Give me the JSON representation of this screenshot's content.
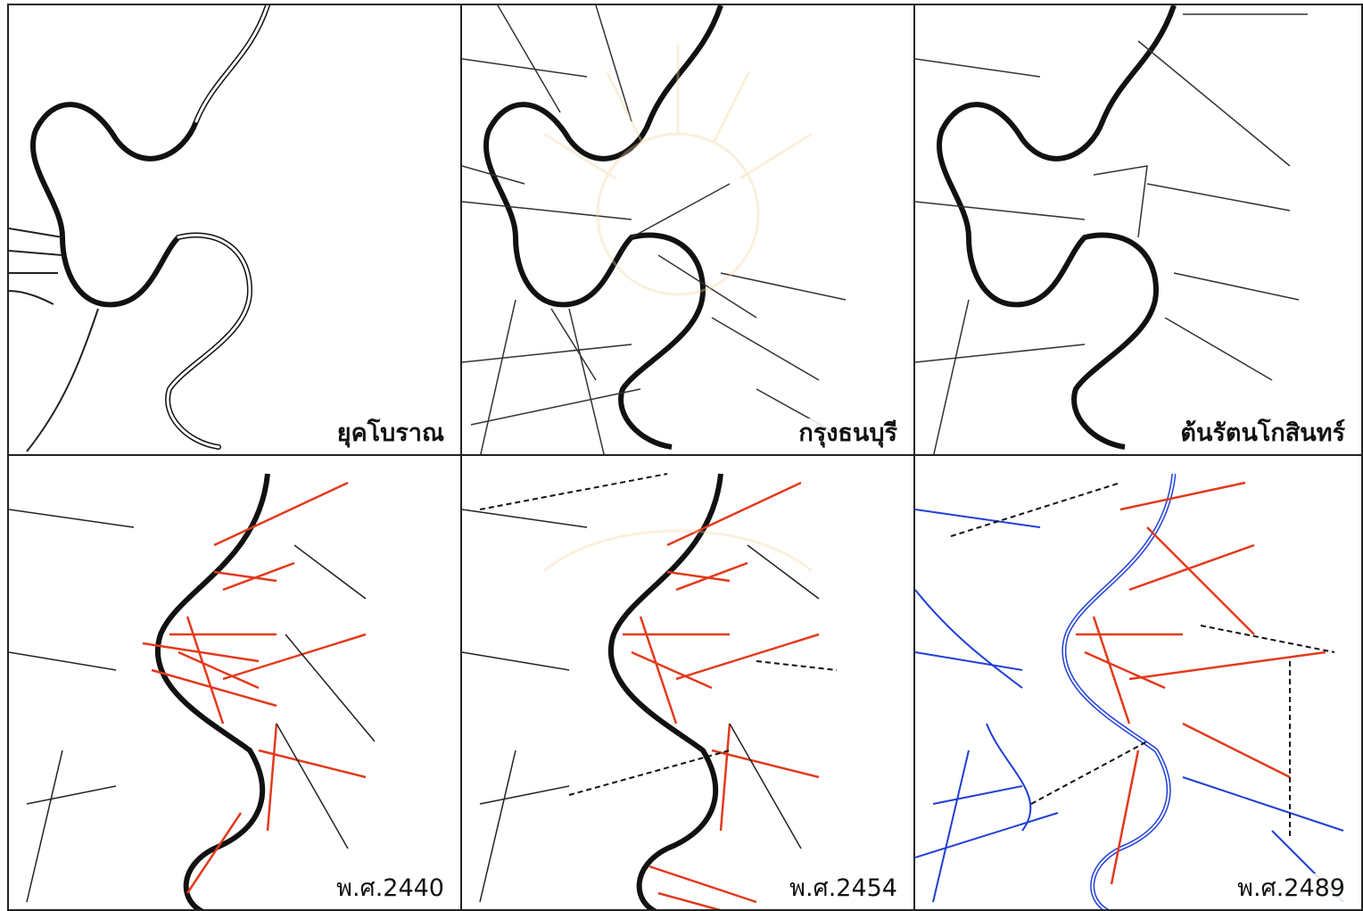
{
  "panels": [
    {
      "id": "p1",
      "label": "ยุคโบราณ"
    },
    {
      "id": "p2",
      "label": "กรุงธนบุรี"
    },
    {
      "id": "p3",
      "label": "ต้นรัตนโกสินทร์"
    },
    {
      "id": "p4",
      "label": "พ.ศ.2440"
    },
    {
      "id": "p5",
      "label": "พ.ศ.2454"
    },
    {
      "id": "p6",
      "label": "พ.ศ.2489"
    }
  ],
  "colors": {
    "river": "#111111",
    "old_roads": "#222222",
    "new_roads": "#e23a1c",
    "canals": "#1f3fd6",
    "frame": "#222222"
  }
}
